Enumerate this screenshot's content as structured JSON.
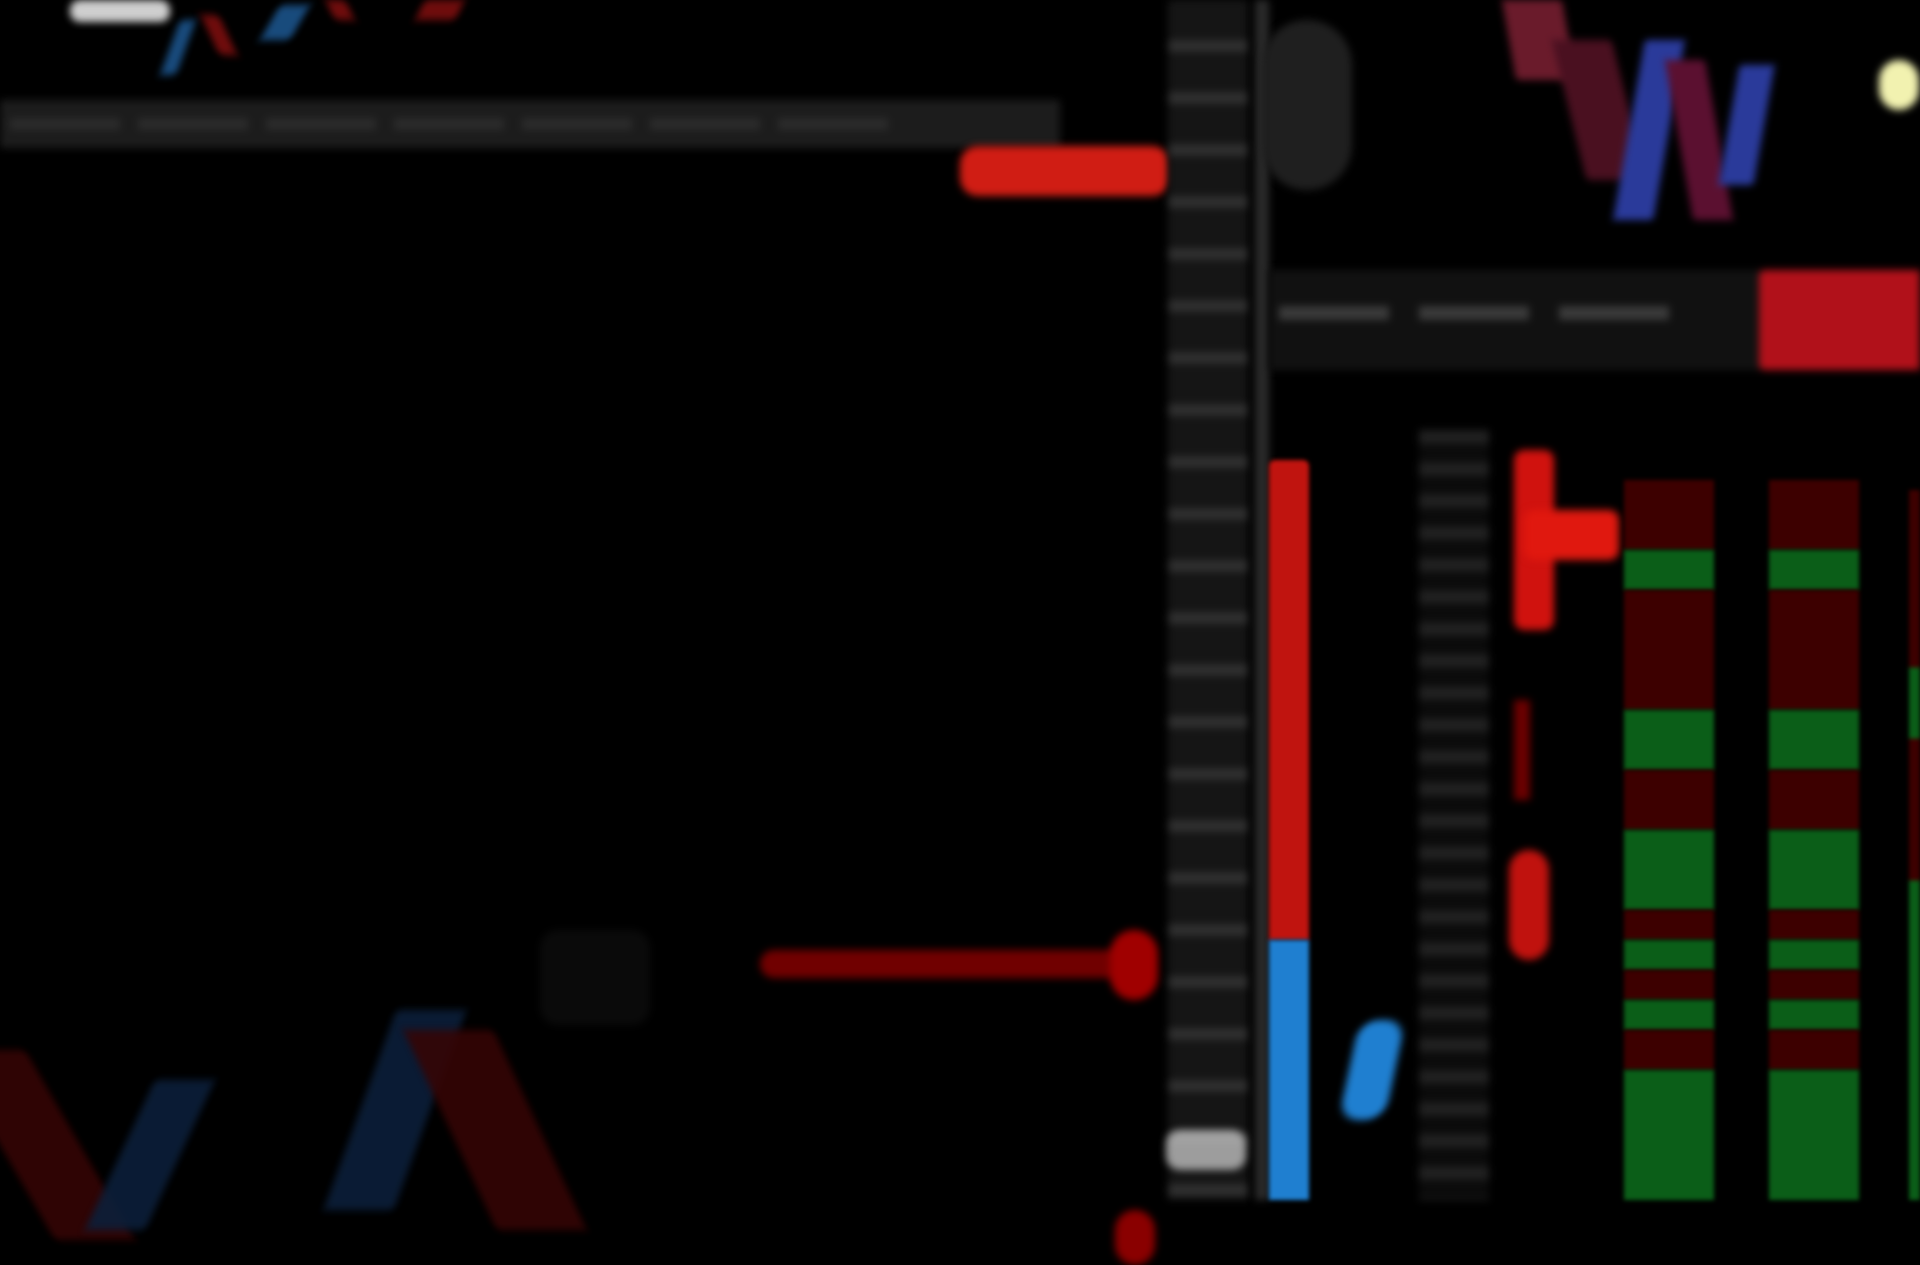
{
  "app": {
    "title": ""
  },
  "header": {
    "tabs": [
      "",
      "",
      "",
      "",
      "",
      "",
      "",
      ""
    ]
  },
  "left_chart": {
    "price_label": "",
    "bid_tag_text": ""
  },
  "price_ladder": {
    "labels": [
      "",
      "",
      "",
      "",
      "",
      "",
      "",
      "",
      "",
      "",
      "",
      "",
      "",
      "",
      "",
      "",
      "",
      "",
      "",
      "",
      ""
    ]
  },
  "dom": {
    "headers": [
      "",
      "",
      "",
      "",
      ""
    ],
    "values": [
      "",
      "",
      "",
      "",
      "",
      "",
      "",
      "",
      ""
    ]
  },
  "colors": {
    "background": "#000000",
    "sell": "#cc1a12",
    "buy": "#1f7fd0",
    "green_row": "#0b5e18",
    "dark_red_row": "#3d0000"
  },
  "icons": [
    "ghost-icon-placeholder"
  ]
}
